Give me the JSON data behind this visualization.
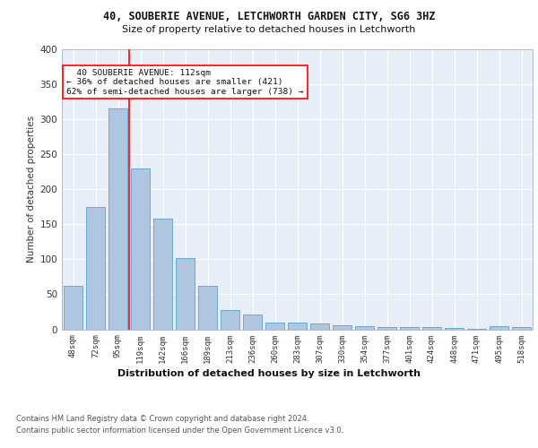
{
  "title": "40, SOUBERIE AVENUE, LETCHWORTH GARDEN CITY, SG6 3HZ",
  "subtitle": "Size of property relative to detached houses in Letchworth",
  "xlabel": "Distribution of detached houses by size in Letchworth",
  "ylabel": "Number of detached properties",
  "bar_color": "#aec6e0",
  "bar_edge_color": "#6aaad4",
  "background_color": "#e8eef8",
  "grid_color": "#ffffff",
  "categories": [
    "48sqm",
    "72sqm",
    "95sqm",
    "119sqm",
    "142sqm",
    "166sqm",
    "189sqm",
    "213sqm",
    "236sqm",
    "260sqm",
    "283sqm",
    "307sqm",
    "330sqm",
    "354sqm",
    "377sqm",
    "401sqm",
    "424sqm",
    "448sqm",
    "471sqm",
    "495sqm",
    "518sqm"
  ],
  "values": [
    62,
    175,
    315,
    230,
    158,
    102,
    62,
    27,
    21,
    9,
    10,
    8,
    6,
    4,
    3,
    3,
    3,
    2,
    1,
    4,
    3
  ],
  "vline_x": 2.5,
  "ylim": [
    0,
    400
  ],
  "yticks": [
    0,
    50,
    100,
    150,
    200,
    250,
    300,
    350,
    400
  ],
  "property_label": "40 SOUBERIE AVENUE: 112sqm",
  "pct_smaller": "36% of detached houses are smaller (421)",
  "pct_larger": "62% of semi-detached houses are larger (738)",
  "footer1": "Contains HM Land Registry data © Crown copyright and database right 2024.",
  "footer2": "Contains public sector information licensed under the Open Government Licence v3.0."
}
